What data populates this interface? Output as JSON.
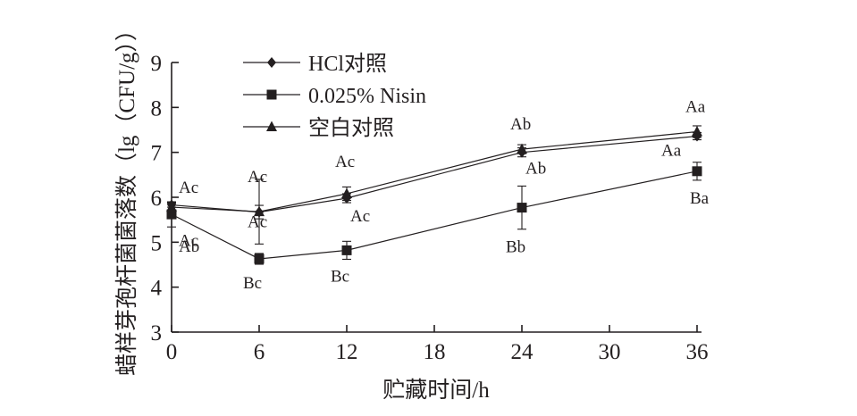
{
  "chart_data": {
    "type": "line",
    "xlabel": "贮藏时间/h",
    "ylabel": "蜡样芽孢杆菌菌落数（lg（CFU/g））",
    "xlim": [
      0,
      36
    ],
    "ylim": [
      3,
      9
    ],
    "x_ticks": [
      0,
      6,
      12,
      18,
      24,
      30,
      36
    ],
    "y_ticks": [
      3,
      4,
      5,
      6,
      7,
      8,
      9
    ],
    "grid": false,
    "legend_position": "top-left",
    "x": [
      0,
      6,
      12,
      24,
      36
    ],
    "series": [
      {
        "name": "HCl对照",
        "marker": "diamond",
        "values": [
          5.83,
          5.67,
          5.98,
          7.0,
          7.36
        ],
        "errors": [
          0.05,
          0.15,
          0.1,
          0.1,
          0.08
        ],
        "labels": [
          "Ac",
          "Ac",
          "Ac",
          "Ab",
          "Aa"
        ]
      },
      {
        "name": "0.025% Nisin",
        "marker": "square",
        "values": [
          5.62,
          4.63,
          4.82,
          5.77,
          6.58
        ],
        "errors": [
          0.28,
          0.12,
          0.2,
          0.48,
          0.2
        ],
        "labels": [
          "Ab",
          "Bc",
          "Bc",
          "Bb",
          "Ba"
        ]
      },
      {
        "name": "空白对照",
        "marker": "triangle",
        "values": [
          5.78,
          5.68,
          6.08,
          7.07,
          7.46
        ],
        "errors": [
          0.08,
          0.72,
          0.15,
          0.1,
          0.13
        ],
        "labels": [
          "Ac",
          "Ac",
          "Ac",
          "Ab",
          "Aa"
        ]
      }
    ]
  }
}
